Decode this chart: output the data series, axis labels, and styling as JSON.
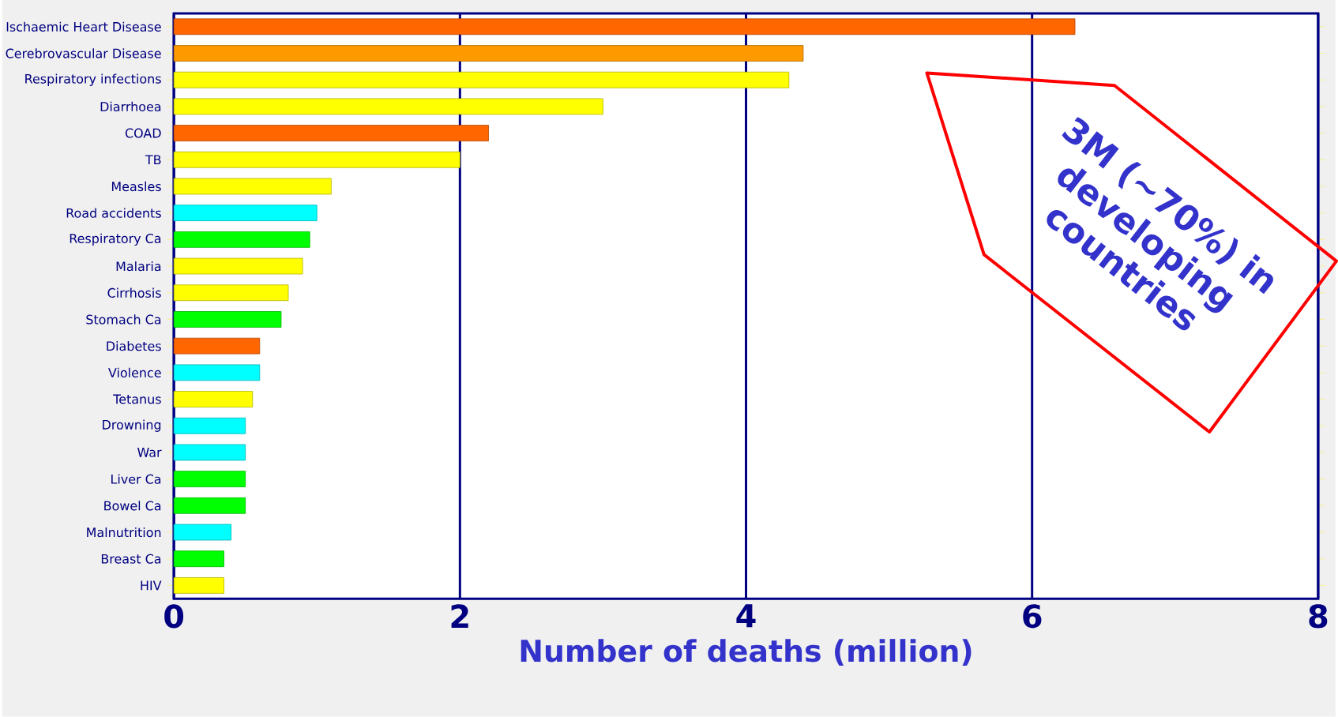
{
  "chart_data": {
    "type": "bar",
    "orientation": "horizontal",
    "xlabel": "Number of deaths (million)",
    "categories": [
      "Ischaemic Heart Disease",
      "Cerebrovascular Disease",
      "Respiratory infections",
      "Diarrhoea",
      "COAD",
      "TB",
      "Measles",
      "Road accidents",
      "Respiratory Ca",
      "Malaria",
      "Cirrhosis",
      "Stomach Ca",
      "Diabetes",
      "Violence",
      "Tetanus",
      "Drowning",
      "War",
      "Liver Ca",
      "Bowel Ca",
      "Malnutrition",
      "Breast Ca",
      "HIV"
    ],
    "values": [
      6.3,
      4.4,
      4.3,
      3.0,
      2.2,
      2.0,
      1.1,
      1.0,
      0.95,
      0.9,
      0.8,
      0.75,
      0.6,
      0.6,
      0.55,
      0.5,
      0.5,
      0.5,
      0.5,
      0.4,
      0.35,
      0.35
    ],
    "colors": [
      "#ff6600",
      "#ff9900",
      "#ffff00",
      "#ffff00",
      "#ff6600",
      "#ffff00",
      "#ffff00",
      "#00ffff",
      "#00ff00",
      "#ffff00",
      "#ffff00",
      "#00ff00",
      "#ff6600",
      "#00ffff",
      "#ffff00",
      "#00ffff",
      "#00ffff",
      "#00ff00",
      "#00ff00",
      "#00ffff",
      "#00ff00",
      "#ffff00"
    ],
    "xlim": [
      0,
      8
    ],
    "xticks": [
      0,
      2,
      4,
      6,
      8
    ],
    "grid": "x",
    "annotations": [
      "3M (~70%) in developing countries"
    ]
  }
}
